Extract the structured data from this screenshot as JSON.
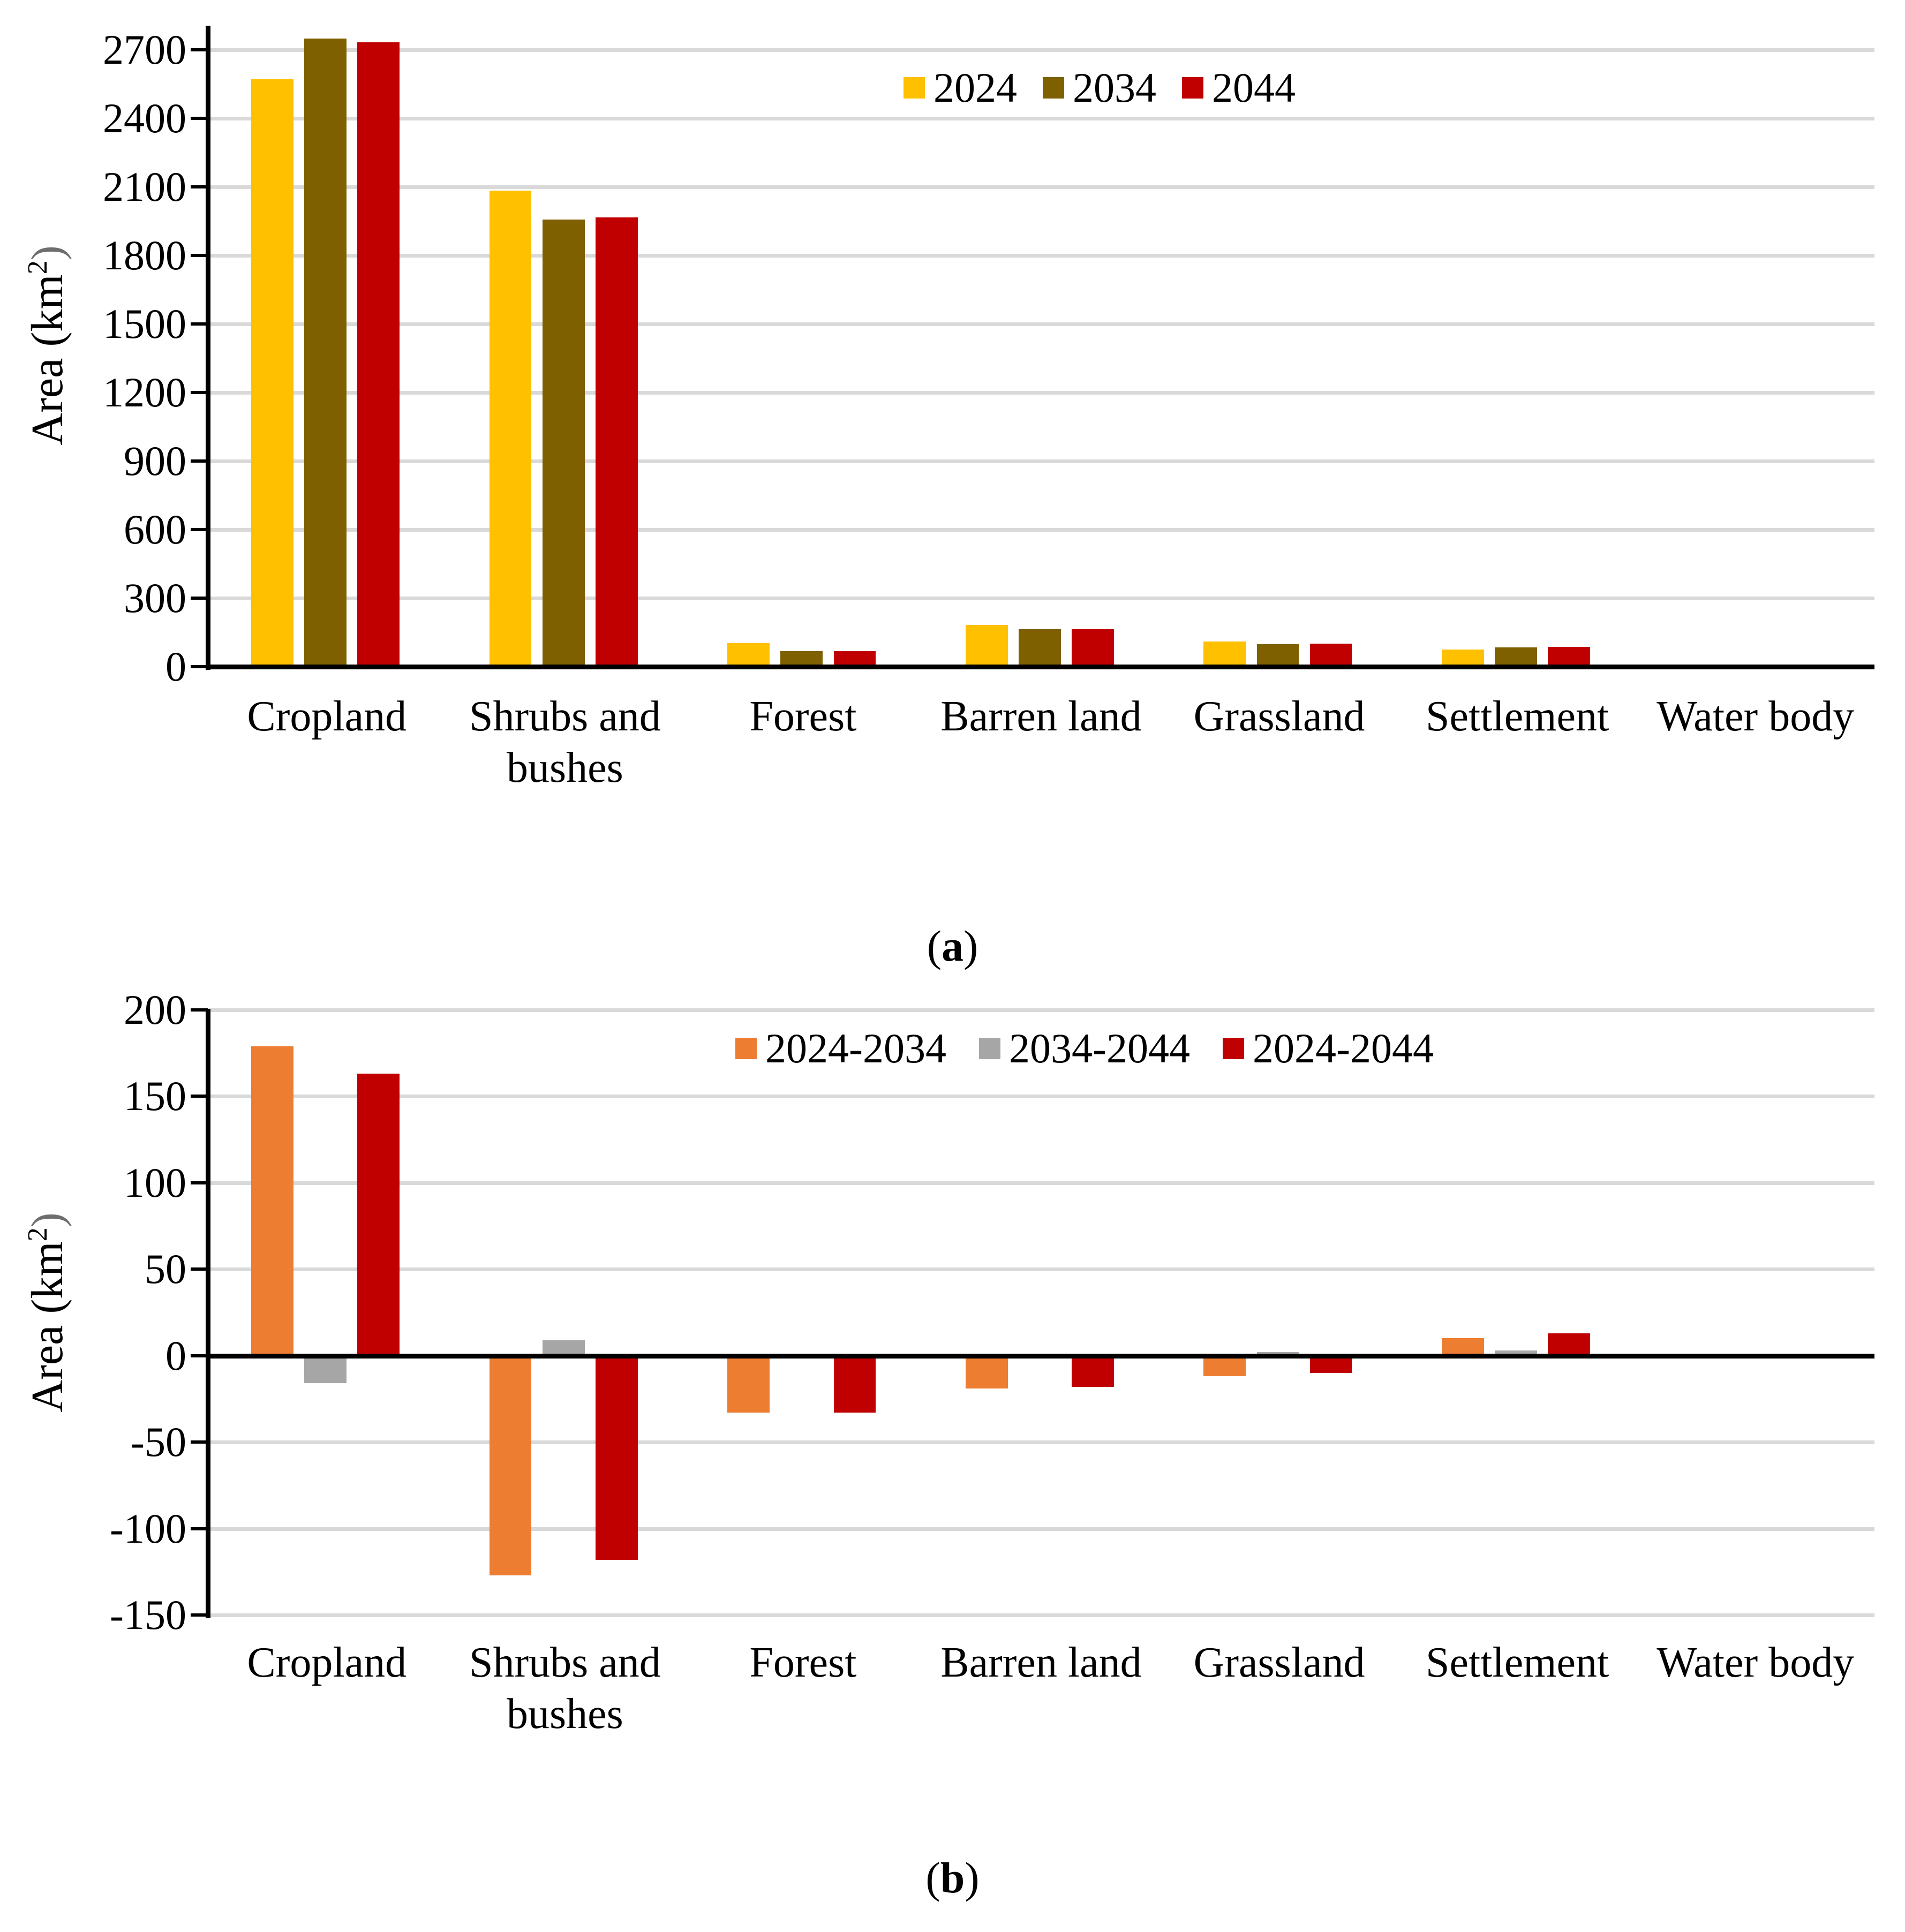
{
  "figure": {
    "background": "#FFFFFF",
    "captions": {
      "a": {
        "open": "(",
        "letter": "a",
        "close": ")"
      },
      "b": {
        "open": "(",
        "letter": "b",
        "close": ")"
      }
    }
  },
  "chart_data": [
    {
      "id": "a",
      "type": "bar",
      "title": "",
      "xlabel": "",
      "ylabel": "Area (km²)",
      "ylabel_parts": {
        "prefix": "Area (km",
        "sup": "2",
        "suffix": ")",
        "suffix_color": "#6E6E6E"
      },
      "categories": [
        "Cropland",
        "Shrubs and bushes",
        "Forest",
        "Barren land",
        "Grassland",
        "Settlement",
        "Water body"
      ],
      "series": [
        {
          "name": "2024",
          "color": "#FFC000",
          "values": [
            2570,
            2083,
            102,
            183,
            110,
            74,
            0
          ]
        },
        {
          "name": "2034",
          "color": "#7F6000",
          "values": [
            2749,
            1956,
            69,
            164,
            98,
            84,
            0
          ]
        },
        {
          "name": "2044",
          "color": "#C00000",
          "values": [
            2733,
            1965,
            69,
            165,
            100,
            87,
            0
          ]
        }
      ],
      "ylim": [
        0,
        2800
      ],
      "yticks": [
        0,
        300,
        600,
        900,
        1200,
        1500,
        1800,
        2100,
        2400,
        2700
      ],
      "grid": true,
      "gridline_color": "#D9D9D9",
      "legend_position": "top"
    },
    {
      "id": "b",
      "type": "bar",
      "title": "",
      "xlabel": "",
      "ylabel": "Area (km²)",
      "ylabel_parts": {
        "prefix": "Area (km",
        "sup": "2",
        "suffix": ")",
        "suffix_color": "#6E6E6E"
      },
      "categories": [
        "Cropland",
        "Shrubs and bushes",
        "Forest",
        "Barren land",
        "Grassland",
        "Settlement",
        "Water body"
      ],
      "series": [
        {
          "name": "2024-2034",
          "color": "#ED7D31",
          "values": [
            179,
            -127,
            -33,
            -19,
            -12,
            10,
            0
          ]
        },
        {
          "name": "2034-2044",
          "color": "#A6A6A6",
          "values": [
            -16,
            9,
            0,
            1,
            2,
            3,
            0
          ]
        },
        {
          "name": "2024-2044",
          "color": "#C00000",
          "values": [
            163,
            -118,
            -33,
            -18,
            -10,
            13,
            0
          ]
        }
      ],
      "ylim": [
        -150,
        200
      ],
      "yticks": [
        -150,
        -100,
        -50,
        0,
        50,
        100,
        150,
        200
      ],
      "grid": true,
      "gridline_color": "#D9D9D9",
      "legend_position": "top"
    }
  ]
}
